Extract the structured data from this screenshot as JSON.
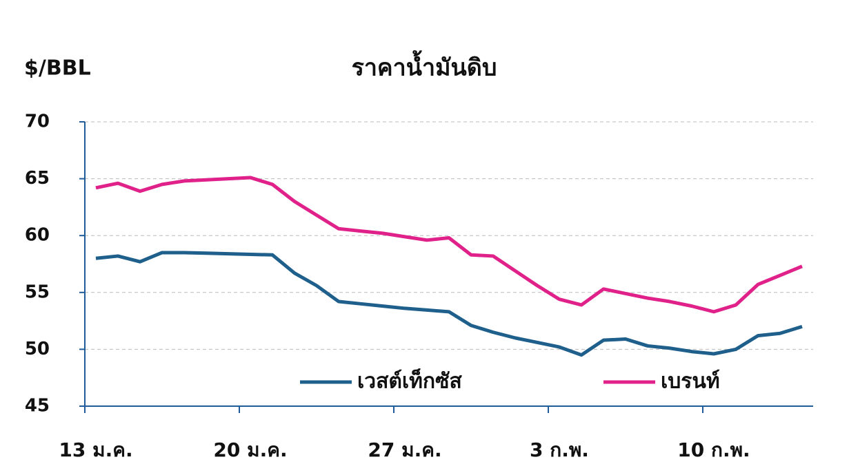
{
  "chart_data": {
    "type": "line",
    "title": "ราคาน้ำมันดิบ",
    "y_label": "$/BBL",
    "categories": [
      "13 ม.ค.",
      null,
      null,
      null,
      null,
      null,
      null,
      "20 ม.ค.",
      null,
      null,
      null,
      null,
      null,
      null,
      "27 ม.ค.",
      null,
      null,
      null,
      null,
      null,
      null,
      "3 ก.พ.",
      null,
      null,
      null,
      null,
      null,
      null,
      "10 ก.พ.",
      null,
      null,
      null,
      null
    ],
    "series": [
      {
        "name": "เวสต์เท็กซัส",
        "color": "#1f5f8b",
        "values": [
          58.0,
          58.2,
          57.7,
          58.5,
          58.5,
          58.45,
          58.4,
          58.35,
          58.3,
          56.7,
          55.6,
          54.2,
          54.0,
          53.8,
          53.6,
          53.45,
          53.3,
          52.1,
          51.5,
          51.0,
          50.6,
          50.2,
          49.5,
          50.8,
          50.9,
          50.3,
          50.1,
          49.8,
          49.6,
          50.0,
          51.2,
          51.4,
          52.0
        ]
      },
      {
        "name": "เบรนท์",
        "color": "#e0218a",
        "values": [
          64.2,
          64.6,
          63.9,
          64.5,
          64.8,
          64.9,
          65.0,
          65.1,
          64.5,
          63.0,
          61.8,
          60.6,
          60.4,
          60.2,
          59.9,
          59.6,
          59.8,
          58.3,
          58.2,
          56.9,
          55.6,
          54.4,
          53.9,
          55.3,
          54.9,
          54.5,
          54.2,
          53.8,
          53.3,
          53.9,
          55.7,
          56.5,
          57.3
        ]
      }
    ],
    "ylim": [
      45,
      70
    ],
    "yticks": [
      45,
      50,
      55,
      60,
      65,
      70
    ],
    "grid": true
  }
}
